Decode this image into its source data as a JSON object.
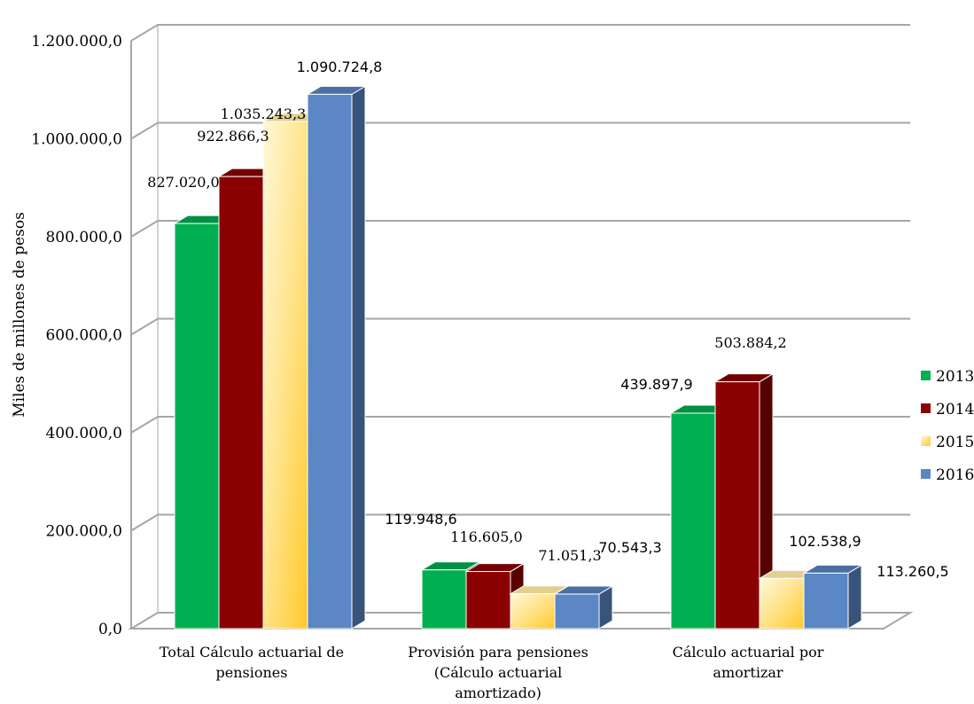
{
  "chart_data": {
    "type": "bar",
    "ylabel": "Miles de millones de pesos",
    "ylim": [
      0,
      1200000
    ],
    "y_tick_step": 200000,
    "y_tick_labels": [
      "0,0",
      "200.000,0",
      "400.000,0",
      "600.000,0",
      "800.000,0",
      "1.000.000,0",
      "1.200.000,0"
    ],
    "categories": [
      [
        "Total Cálculo actuarial de",
        "pensiones"
      ],
      [
        "Provisión para pensiones",
        "(Cálculo actuarial",
        "amortizado)"
      ],
      [
        "Cálculo actuarial por",
        "amortizar"
      ]
    ],
    "series": [
      {
        "name": "2013",
        "color": "#00b050",
        "values": [
          827020.0,
          119948.6,
          439897.9
        ],
        "labels": [
          "827.020,0",
          "119.948,6",
          "439.897,9"
        ]
      },
      {
        "name": "2014",
        "color": "#8b0000",
        "values": [
          922866.3,
          116605.0,
          503884.2
        ],
        "labels": [
          "922.866,3",
          "116.605,0",
          "503.884,2"
        ]
      },
      {
        "name": "2015",
        "color": "#ffd966",
        "values": [
          1035243.3,
          71051.3,
          102538.9
        ],
        "labels": [
          "1.035.243,3",
          "71.051,3",
          "102.538,9"
        ]
      },
      {
        "name": "2016",
        "color": "#5b87c5",
        "values": [
          1090724.8,
          70543.3,
          113260.5
        ],
        "labels": [
          "1.090.724,8",
          "70.543,3",
          "113.260,5"
        ]
      }
    ],
    "legend_position": "right",
    "grid": true,
    "three_d": true
  }
}
